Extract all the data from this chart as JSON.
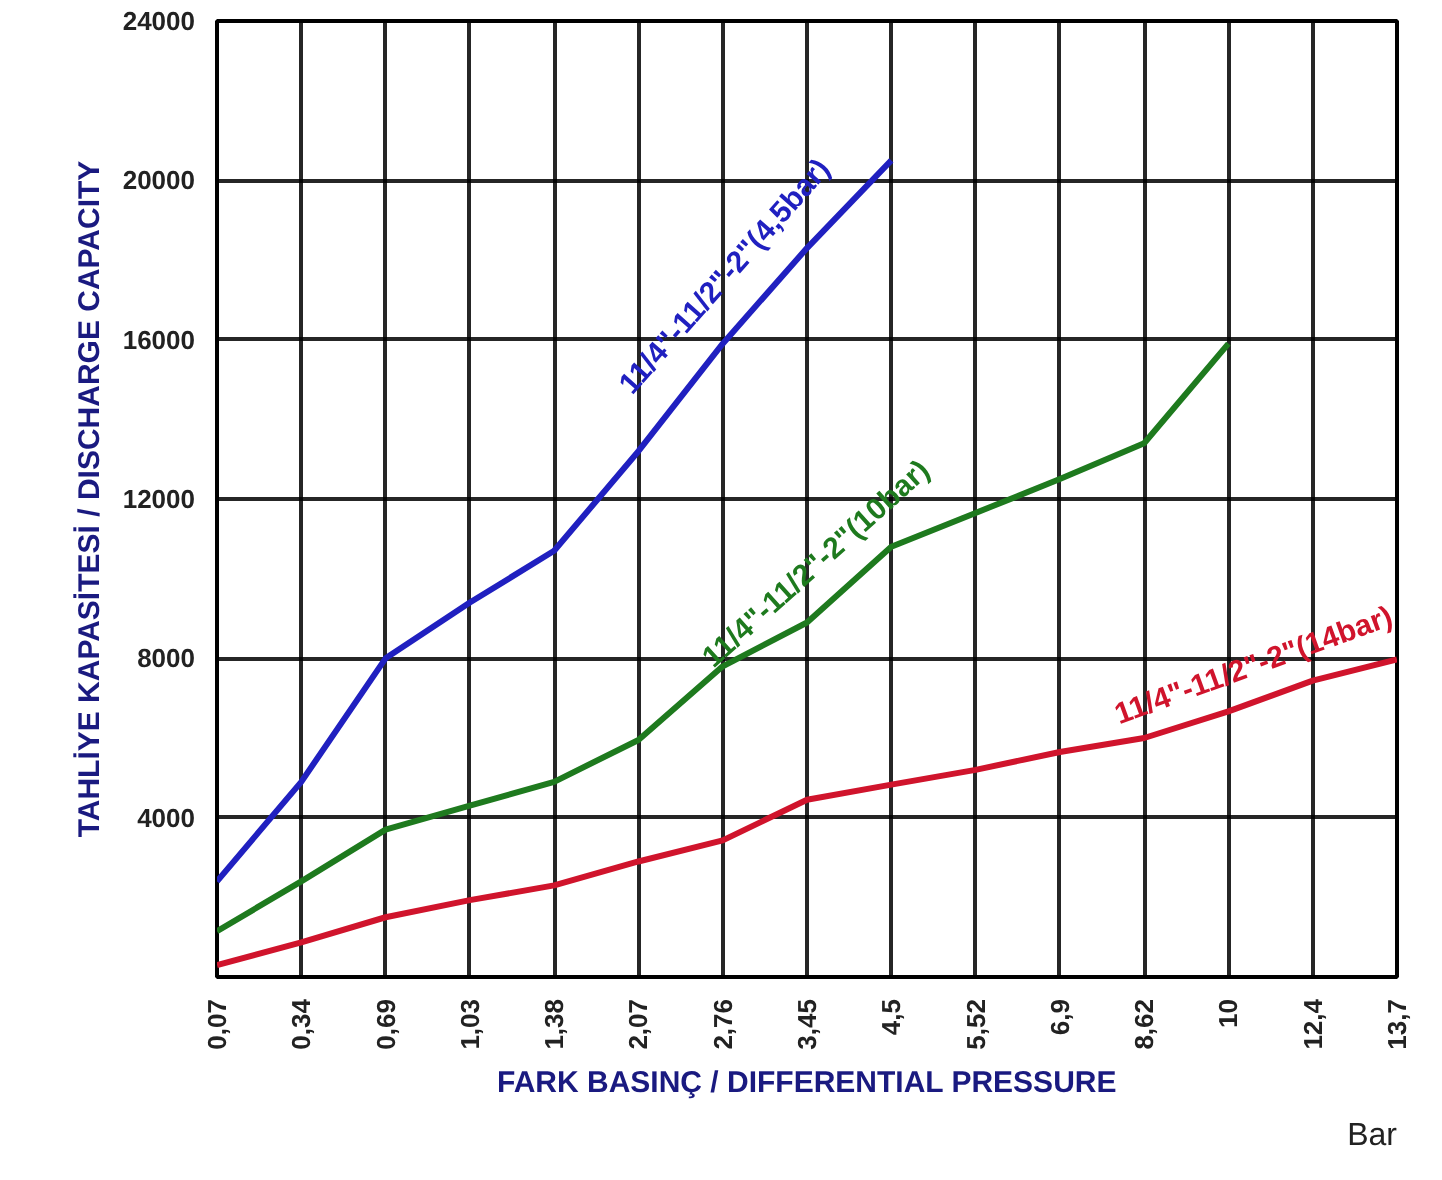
{
  "chart_data": {
    "type": "line",
    "ylabel": "TAHLİYE KAPASİTESİ / DISCHARGE CAPACITY",
    "xlabel": "FARK BASINÇ / DIFFERENTIAL PRESSURE",
    "annotations": [
      "Bar"
    ],
    "categories": [
      "0,07",
      "0,34",
      "0,69",
      "1,03",
      "1,38",
      "2,07",
      "2,76",
      "3,45",
      "4,5",
      "5,52",
      "6,9",
      "8,62",
      "10",
      "12,4",
      "13,7"
    ],
    "ylim": [
      0,
      24000
    ],
    "yticks": [
      4000,
      8000,
      12000,
      16000,
      20000,
      24000
    ],
    "grid": true,
    "marker": "none",
    "line_style": "solid",
    "series": [
      {
        "name": "11/4\"-11/2\"-2\"(4,5bar)",
        "color": "#2020c0",
        "values": [
          2400,
          4900,
          8000,
          9400,
          10700,
          13200,
          15900,
          18300,
          20500,
          null,
          null,
          null,
          null,
          null,
          null
        ]
      },
      {
        "name": "11/4\"-11/2\"-2\"(10bar)",
        "color": "#1e7a1e",
        "values": [
          1150,
          2400,
          3700,
          4300,
          4900,
          5950,
          7800,
          8900,
          10800,
          11650,
          12500,
          13400,
          15900,
          null,
          null
        ]
      },
      {
        "name": "11/4\"-11/2\"-2\"(14bar)",
        "color": "#d0142c",
        "values": [
          300,
          870,
          1500,
          1930,
          2300,
          2900,
          3430,
          4450,
          4830,
          5200,
          5650,
          6000,
          6670,
          7440,
          7970
        ]
      }
    ]
  }
}
